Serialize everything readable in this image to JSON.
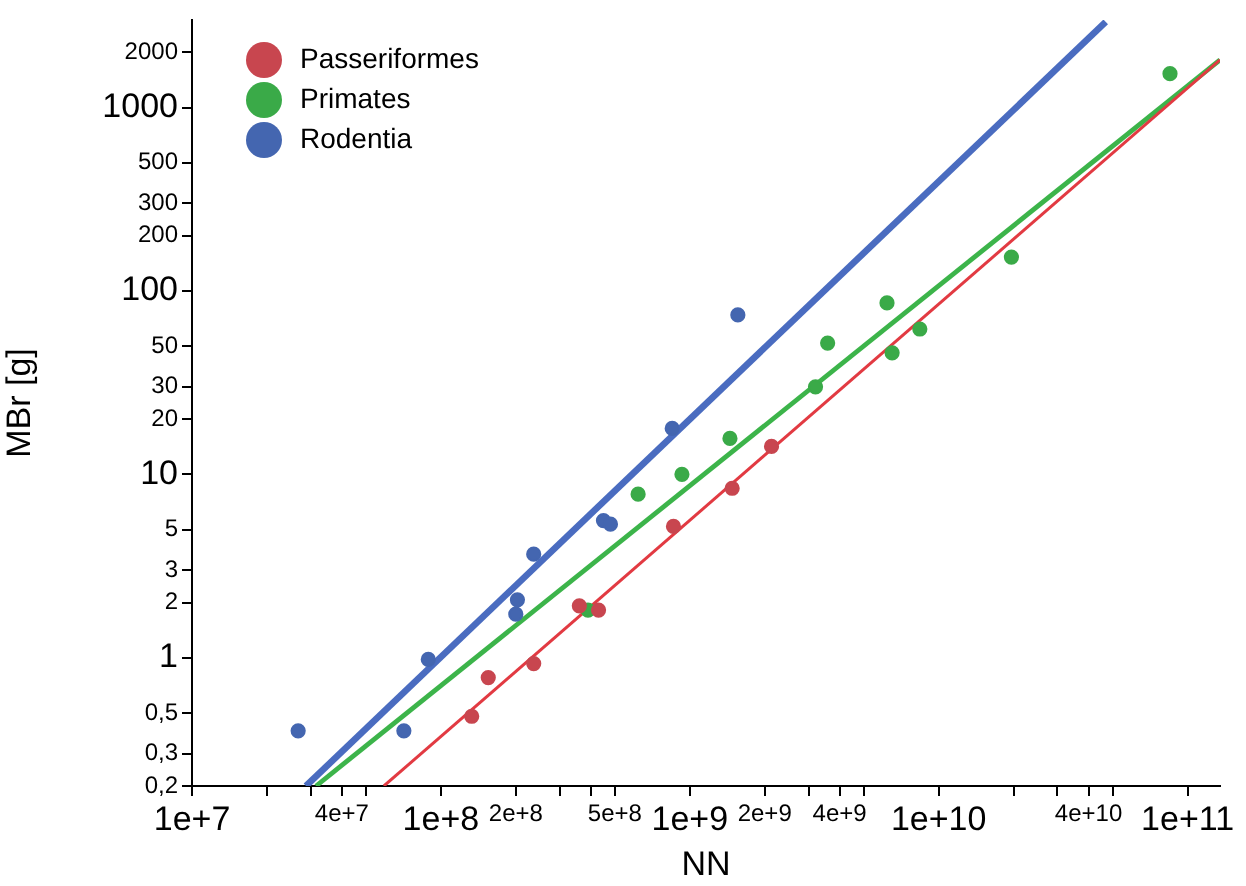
{
  "chart_data": {
    "type": "scatter",
    "xlabel": "NN",
    "ylabel": "MBr [g]",
    "log": "xy",
    "grid": false,
    "legend": "top left",
    "marker": "circle",
    "xlim": [
      10000000.0,
      135000000000.0
    ],
    "ylim": [
      0.2,
      3000
    ],
    "xticks": [
      {
        "value": 10000000.0,
        "label": "1e+7"
      },
      {
        "value": 20000000.0,
        "label": null
      },
      {
        "value": 30000000.0,
        "label": null
      },
      {
        "value": 40000000.0,
        "label": "4e+7"
      },
      {
        "value": 50000000.0,
        "label": null
      },
      {
        "value": 100000000.0,
        "label": "1e+8"
      },
      {
        "value": 200000000.0,
        "label": "2e+8"
      },
      {
        "value": 300000000.0,
        "label": null
      },
      {
        "value": 400000000.0,
        "label": null
      },
      {
        "value": 500000000.0,
        "label": "5e+8"
      },
      {
        "value": 1000000000.0,
        "label": "1e+9"
      },
      {
        "value": 2000000000.0,
        "label": "2e+9"
      },
      {
        "value": 3000000000.0,
        "label": null
      },
      {
        "value": 4000000000.0,
        "label": "4e+9"
      },
      {
        "value": 5000000000.0,
        "label": null
      },
      {
        "value": 10000000000.0,
        "label": "1e+10"
      },
      {
        "value": 20000000000.0,
        "label": null
      },
      {
        "value": 30000000000.0,
        "label": null
      },
      {
        "value": 40000000000.0,
        "label": "4e+10"
      },
      {
        "value": 50000000000.0,
        "label": null
      },
      {
        "value": 100000000000.0,
        "label": "1e+11"
      }
    ],
    "yticks": [
      {
        "value": 0.2,
        "label": "0,2"
      },
      {
        "value": 0.3,
        "label": "0,3"
      },
      {
        "value": 0.5,
        "label": "0,5"
      },
      1,
      2,
      3,
      5,
      10,
      20,
      30,
      50,
      100,
      200,
      300,
      500,
      1000,
      2000
    ],
    "series": [
      {
        "name": "Passeriformes",
        "color": "#c8464f",
        "x": [
          133000000.0,
          155000000.0,
          236000000.0,
          360000000.0,
          430000000.0,
          860000000.0,
          1480000000.0,
          2130000000.0
        ],
        "values": [
          0.48,
          0.78,
          0.93,
          1.92,
          1.82,
          5.2,
          8.4,
          14.2
        ]
      },
      {
        "name": "Primates",
        "color": "#3aaa48",
        "x": [
          390000000.0,
          620000000.0,
          930000000.0,
          1450000000.0,
          3200000000.0,
          3580000000.0,
          6200000000.0,
          6500000000.0,
          8400000000.0,
          19600000000.0,
          85000000000.0
        ],
        "values": [
          1.82,
          7.8,
          10,
          15.7,
          30,
          52,
          86,
          46,
          62,
          153,
          1530
        ]
      },
      {
        "name": "Rodentia",
        "color": "#4466b0",
        "x": [
          26700000.0,
          71000000.0,
          89000000.0,
          200000000.0,
          203000000.0,
          236000000.0,
          450000000.0,
          480000000.0,
          850000000.0,
          1560000000.0
        ],
        "values": [
          0.4,
          0.4,
          0.98,
          1.73,
          2.07,
          3.67,
          5.6,
          5.35,
          17.8,
          74
        ]
      },
      {
        "type": "line",
        "marker": "none",
        "color": "#e23a42",
        "x": [
          59000000.0,
          135000000000.0
        ],
        "values": [
          0.2,
          1820
        ]
      },
      {
        "type": "line",
        "marker": "none",
        "color": "#3cb44a",
        "x": [
          31500000.0,
          135000000000.0
        ],
        "values": [
          0.2,
          1820
        ]
      },
      {
        "type": "line",
        "marker": "none",
        "color": "#4a6cc0",
        "x": [
          28700000.0,
          46900000000.0
        ],
        "values": [
          0.2,
          2930
        ]
      }
    ]
  }
}
